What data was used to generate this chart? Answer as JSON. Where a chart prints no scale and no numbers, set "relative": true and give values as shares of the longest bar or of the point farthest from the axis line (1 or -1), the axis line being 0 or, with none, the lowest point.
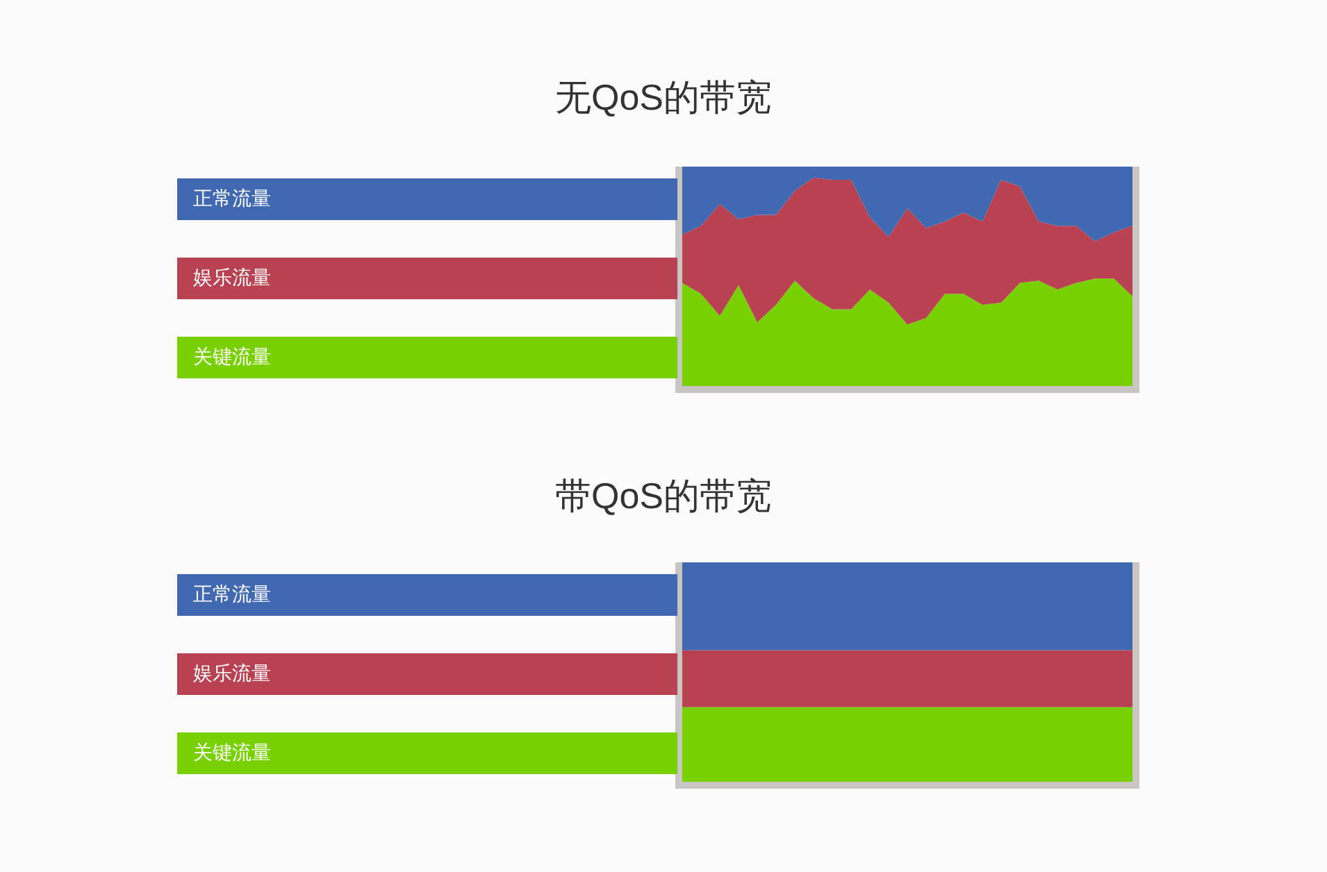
{
  "chart_data": [
    {
      "type": "area",
      "title": "无QoS的带宽",
      "relative": true,
      "stacked": true,
      "legend": "left",
      "categories": [
        null,
        null,
        null,
        null,
        null,
        null,
        null,
        null,
        null,
        null,
        null,
        null,
        null,
        null,
        null,
        null,
        null,
        null,
        null,
        null,
        null,
        null,
        null,
        null,
        null
      ],
      "series": [
        {
          "name": "关键流量",
          "color": "#78d000",
          "values": [
            0.47,
            0.42,
            0.32,
            0.46,
            0.29,
            0.37,
            0.48,
            0.4,
            0.35,
            0.35,
            0.44,
            0.38,
            0.28,
            0.31,
            0.42,
            0.42,
            0.37,
            0.38,
            0.47,
            0.48,
            0.44,
            0.47,
            0.49,
            0.49,
            0.41
          ]
        },
        {
          "name": "娱乐流量",
          "color": "#b84152",
          "values": [
            0.22,
            0.31,
            0.51,
            0.3,
            0.49,
            0.41,
            0.41,
            0.55,
            0.59,
            0.59,
            0.33,
            0.3,
            0.53,
            0.41,
            0.33,
            0.37,
            0.38,
            0.56,
            0.44,
            0.27,
            0.29,
            0.26,
            0.17,
            0.21,
            0.32
          ]
        },
        {
          "name": "正常流量",
          "color": "#4169b2",
          "values": [
            0.31,
            0.27,
            0.17,
            0.24,
            0.22,
            0.22,
            0.11,
            0.05,
            0.06,
            0.06,
            0.23,
            0.32,
            0.19,
            0.28,
            0.25,
            0.21,
            0.25,
            0.06,
            0.09,
            0.25,
            0.27,
            0.27,
            0.34,
            0.3,
            0.27
          ]
        }
      ]
    },
    {
      "type": "bar",
      "title": "带QoS的带宽",
      "relative": true,
      "stacked": true,
      "legend": "left",
      "categories": [
        null
      ],
      "series": [
        {
          "name": "关键流量",
          "color": "#78d000",
          "values": [
            0.34
          ]
        },
        {
          "name": "娱乐流量",
          "color": "#b84152",
          "values": [
            0.26
          ]
        },
        {
          "name": "正常流量",
          "color": "#4169b2",
          "values": [
            0.4
          ]
        }
      ]
    }
  ]
}
